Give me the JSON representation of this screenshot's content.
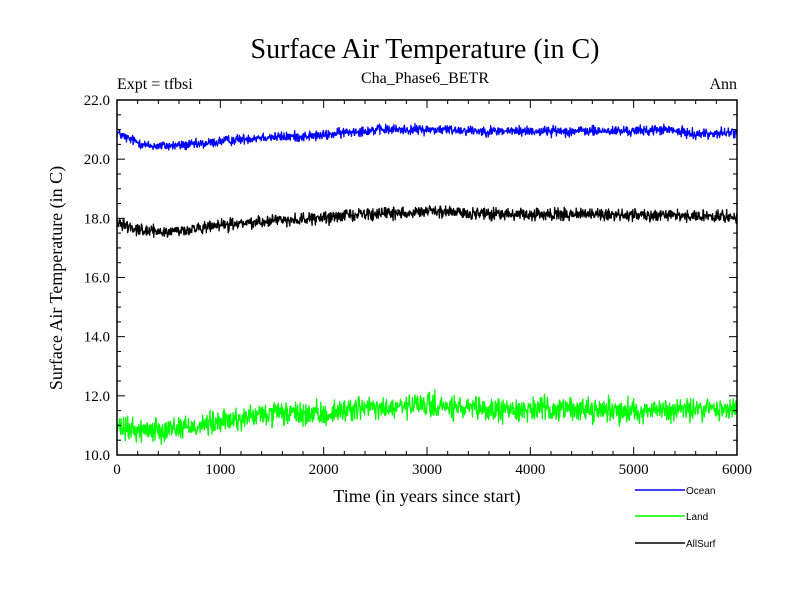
{
  "chart_data": {
    "type": "line",
    "title": "Surface Air Temperature (in C)",
    "subtitle_left": "Expt = tfbsi",
    "subtitle_center": "Cha_Phase6_BETR",
    "subtitle_right": "Ann",
    "xlabel": "Time (in years since start)",
    "ylabel": "Surface Air Temperature (in C)",
    "xlim": [
      0,
      6000
    ],
    "ylim": [
      10.0,
      22.0
    ],
    "x_ticks": [
      0,
      1000,
      2000,
      3000,
      4000,
      5000,
      6000
    ],
    "x_tick_labels": [
      "0",
      "1000",
      "2000",
      "3000",
      "4000",
      "5000",
      "6000"
    ],
    "y_ticks": [
      10.0,
      12.0,
      14.0,
      16.0,
      18.0,
      20.0,
      22.0
    ],
    "y_tick_labels": [
      "10.0",
      "12.0",
      "14.0",
      "16.0",
      "18.0",
      "20.0",
      "22.0"
    ],
    "grid": false,
    "legend_position": "bottom-right, below plot",
    "series": [
      {
        "name": "Ocean",
        "color": "#0000ff",
        "noise": 0.12,
        "x": [
          0,
          100,
          300,
          500,
          800,
          1000,
          1400,
          1600,
          2000,
          2300,
          2600,
          3000,
          3200,
          3600,
          4000,
          4500,
          5000,
          5300,
          5600,
          6000
        ],
        "values": [
          20.9,
          20.7,
          20.45,
          20.45,
          20.5,
          20.6,
          20.75,
          20.75,
          20.8,
          20.95,
          21.0,
          21.0,
          21.0,
          20.95,
          20.95,
          20.95,
          20.95,
          21.0,
          20.85,
          20.9
        ]
      },
      {
        "name": "Land",
        "color": "#00ff00",
        "noise": 0.28,
        "x": [
          0,
          100,
          300,
          500,
          800,
          1000,
          1400,
          1600,
          2000,
          2300,
          2600,
          3000,
          3200,
          3600,
          4000,
          4500,
          5000,
          5300,
          5600,
          6000
        ],
        "values": [
          10.9,
          10.85,
          10.85,
          10.9,
          11.0,
          11.1,
          11.35,
          11.4,
          11.35,
          11.6,
          11.55,
          11.7,
          11.6,
          11.5,
          11.55,
          11.55,
          11.5,
          11.5,
          11.55,
          11.55
        ]
      },
      {
        "name": "AllSurf",
        "color": "#000000",
        "noise": 0.14,
        "x": [
          0,
          100,
          300,
          500,
          800,
          1000,
          1400,
          1600,
          2000,
          2300,
          2600,
          3000,
          3200,
          3600,
          4000,
          4500,
          5000,
          5300,
          5600,
          6000
        ],
        "values": [
          17.9,
          17.75,
          17.55,
          17.55,
          17.65,
          17.75,
          17.9,
          17.95,
          18.0,
          18.15,
          18.15,
          18.25,
          18.2,
          18.15,
          18.1,
          18.15,
          18.1,
          18.15,
          18.05,
          18.05
        ]
      }
    ]
  }
}
